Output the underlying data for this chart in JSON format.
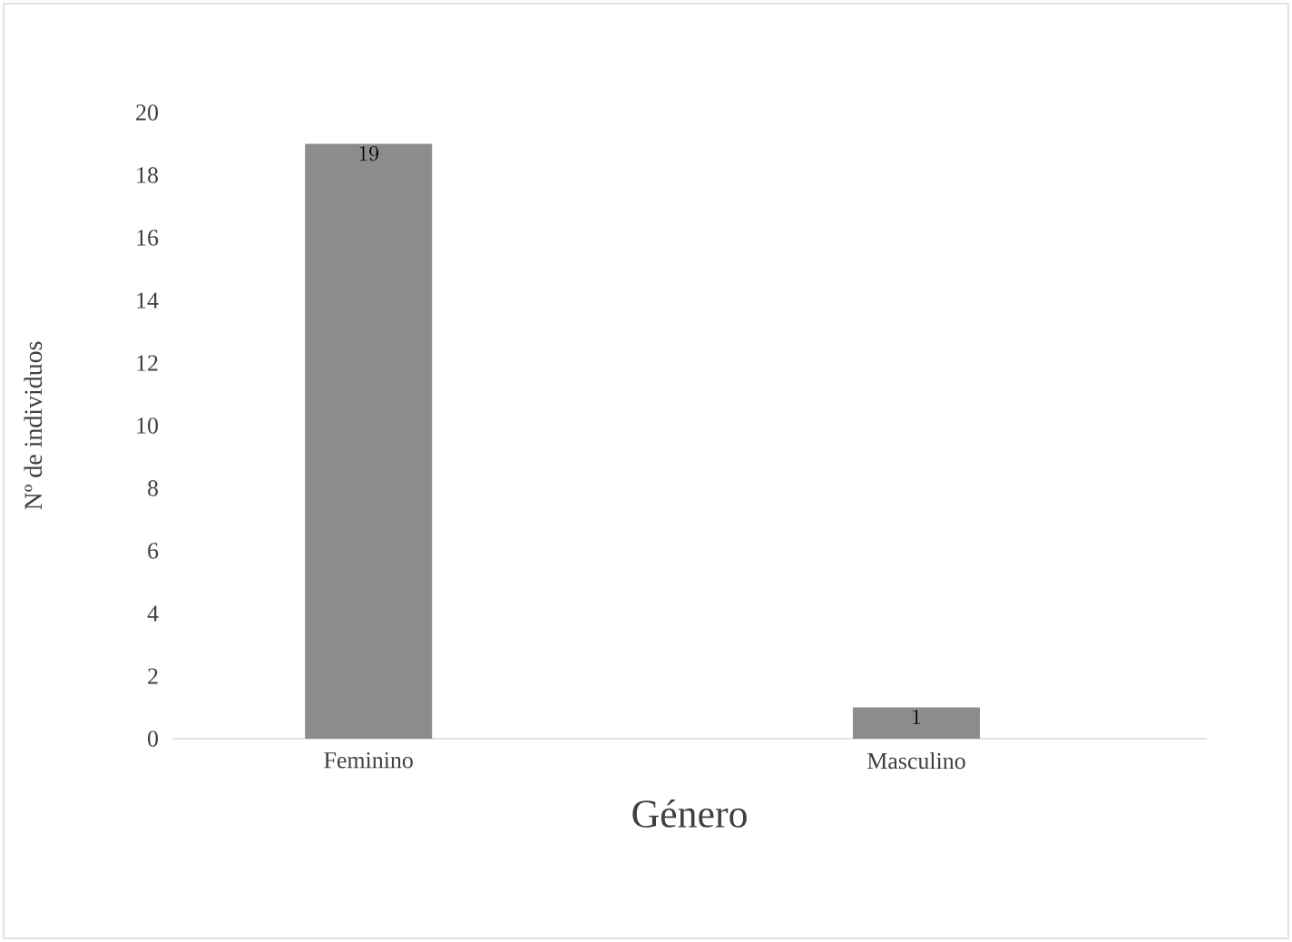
{
  "chart_data": {
    "type": "bar",
    "xlabel": "Género",
    "ylabel": "Nº de individuos",
    "categories": [
      "Feminino",
      "Masculino"
    ],
    "values": [
      19,
      1
    ],
    "color": "#8c8c8c",
    "ylim": [
      0,
      20
    ],
    "yticks": [
      0,
      2,
      4,
      6,
      8,
      10,
      12,
      14,
      16,
      18,
      20
    ],
    "data_labels": true
  }
}
